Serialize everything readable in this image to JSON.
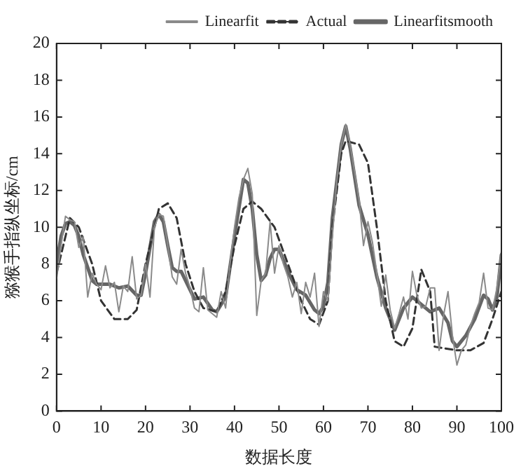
{
  "chart_data": {
    "type": "line",
    "xlabel": "数据长度",
    "ylabel": "猕猴手指纵坐标/cm",
    "xlim": [
      0,
      100
    ],
    "ylim": [
      0,
      20
    ],
    "xticks": [
      0,
      10,
      20,
      30,
      40,
      50,
      60,
      70,
      80,
      90,
      100
    ],
    "yticks": [
      0,
      2,
      4,
      6,
      8,
      10,
      12,
      14,
      16,
      18,
      20
    ],
    "grid": false,
    "legend": "top right",
    "marker": "none",
    "series": [
      {
        "name": "Linearfit",
        "color": "#8a8a8a",
        "line_style": "solid",
        "x": [
          0,
          1,
          2,
          3,
          4,
          5,
          6,
          7,
          8,
          9,
          10,
          11,
          12,
          13,
          14,
          15,
          16,
          17,
          18,
          19,
          20,
          21,
          22,
          23,
          24,
          25,
          26,
          27,
          28,
          29,
          30,
          31,
          32,
          33,
          34,
          35,
          36,
          37,
          38,
          39,
          40,
          41,
          42,
          43,
          44,
          45,
          46,
          47,
          48,
          49,
          50,
          51,
          52,
          53,
          54,
          55,
          56,
          57,
          58,
          59,
          60,
          61,
          62,
          63,
          64,
          65,
          66,
          67,
          68,
          69,
          70,
          71,
          72,
          73,
          74,
          75,
          76,
          77,
          78,
          79,
          80,
          81,
          82,
          83,
          84,
          85,
          86,
          87,
          88,
          89,
          90,
          91,
          92,
          93,
          94,
          95,
          96,
          97,
          98,
          99,
          100
        ],
        "values": [
          7.2,
          9,
          10.6,
          10.4,
          10.3,
          8.9,
          9.5,
          6.2,
          7.5,
          6.9,
          6.6,
          7.9,
          6.7,
          7,
          5.4,
          6.8,
          6.5,
          8.4,
          6.1,
          6.3,
          8,
          6.2,
          10,
          10.7,
          10.6,
          9,
          7.3,
          6.9,
          8.8,
          7.5,
          6.7,
          5.6,
          5.4,
          7.8,
          5.5,
          5.3,
          5.1,
          6.5,
          5.6,
          8,
          10,
          11.6,
          12.6,
          13.2,
          11.8,
          5.2,
          7.1,
          7.5,
          10.3,
          7.5,
          9,
          8,
          7.3,
          6.2,
          7,
          5.3,
          7,
          6.2,
          7.5,
          4.6,
          6.5,
          6,
          9.5,
          12.5,
          14.5,
          15.6,
          14.5,
          13,
          11.5,
          9,
          10.3,
          9.2,
          7.5,
          5.7,
          7.4,
          5.5,
          4.5,
          5.3,
          6.2,
          5,
          7.6,
          6.3,
          5.6,
          5.7,
          6.7,
          6.7,
          3.3,
          5.2,
          6.5,
          4.1,
          2.5,
          3.3,
          3.6,
          4.6,
          5.3,
          5.9,
          7.5,
          5.6,
          5.5,
          6.7,
          8.7
        ]
      },
      {
        "name": "Actual",
        "color": "#333333",
        "line_style": "dashed",
        "x": [
          0,
          3,
          5,
          8,
          10,
          13,
          16,
          18,
          20,
          23,
          25,
          27,
          29,
          31,
          33,
          36,
          38,
          40,
          42,
          44,
          46,
          49,
          52,
          55,
          57,
          59,
          61,
          62,
          64,
          65,
          68,
          70,
          72,
          74,
          76,
          78,
          80,
          82,
          84,
          85,
          90,
          93,
          96,
          98,
          100
        ],
        "values": [
          7.5,
          10.5,
          10,
          8,
          6,
          5,
          5,
          5.5,
          8,
          11,
          11.3,
          10.5,
          8,
          6.5,
          5.6,
          5.4,
          6.5,
          9,
          11,
          11.4,
          11,
          10,
          8,
          6,
          5,
          4.7,
          6,
          10,
          14,
          14.7,
          14.5,
          13.5,
          10,
          6,
          3.8,
          3.5,
          4.5,
          7.7,
          6.5,
          3.5,
          3.3,
          3.3,
          3.7,
          5,
          6.5
        ]
      },
      {
        "name": "Linearfitsmooth",
        "color": "#666666",
        "line_style": "solid",
        "x": [
          0,
          1,
          2,
          3,
          4,
          5,
          6,
          7,
          8,
          9,
          10,
          12,
          14,
          16,
          18,
          19,
          20,
          22,
          23,
          24,
          25,
          26,
          27,
          28,
          30,
          31,
          33,
          35,
          36,
          38,
          40,
          42,
          43,
          44,
          45,
          46,
          47,
          48,
          49,
          50,
          51,
          52,
          54,
          56,
          58,
          59,
          60,
          61,
          62,
          64,
          65,
          66,
          68,
          70,
          72,
          74,
          76,
          78,
          80,
          82,
          84,
          86,
          88,
          89,
          90,
          92,
          94,
          96,
          97,
          98,
          99,
          100
        ],
        "values": [
          8,
          9.5,
          10.2,
          10.3,
          10.1,
          9.5,
          8.5,
          7.8,
          7.1,
          6.9,
          6.9,
          6.9,
          6.7,
          6.8,
          6.3,
          6.3,
          7.5,
          10.3,
          10.7,
          10.3,
          9,
          7.8,
          7.6,
          7.6,
          6.6,
          6.1,
          6.2,
          5.5,
          5.4,
          6.2,
          9.5,
          12.6,
          12.4,
          11,
          8.5,
          7.1,
          7.4,
          8.3,
          8.8,
          8.8,
          8.2,
          7.6,
          6.6,
          6.3,
          5.5,
          5.3,
          5.7,
          7,
          10.5,
          14.5,
          15.5,
          14.3,
          11.2,
          9.6,
          7.3,
          5.6,
          4.4,
          5.6,
          6.2,
          5.8,
          5.4,
          5.6,
          4.8,
          3.8,
          3.5,
          4.1,
          5,
          6.3,
          6.1,
          5.5,
          6.2,
          8.5
        ]
      }
    ]
  }
}
